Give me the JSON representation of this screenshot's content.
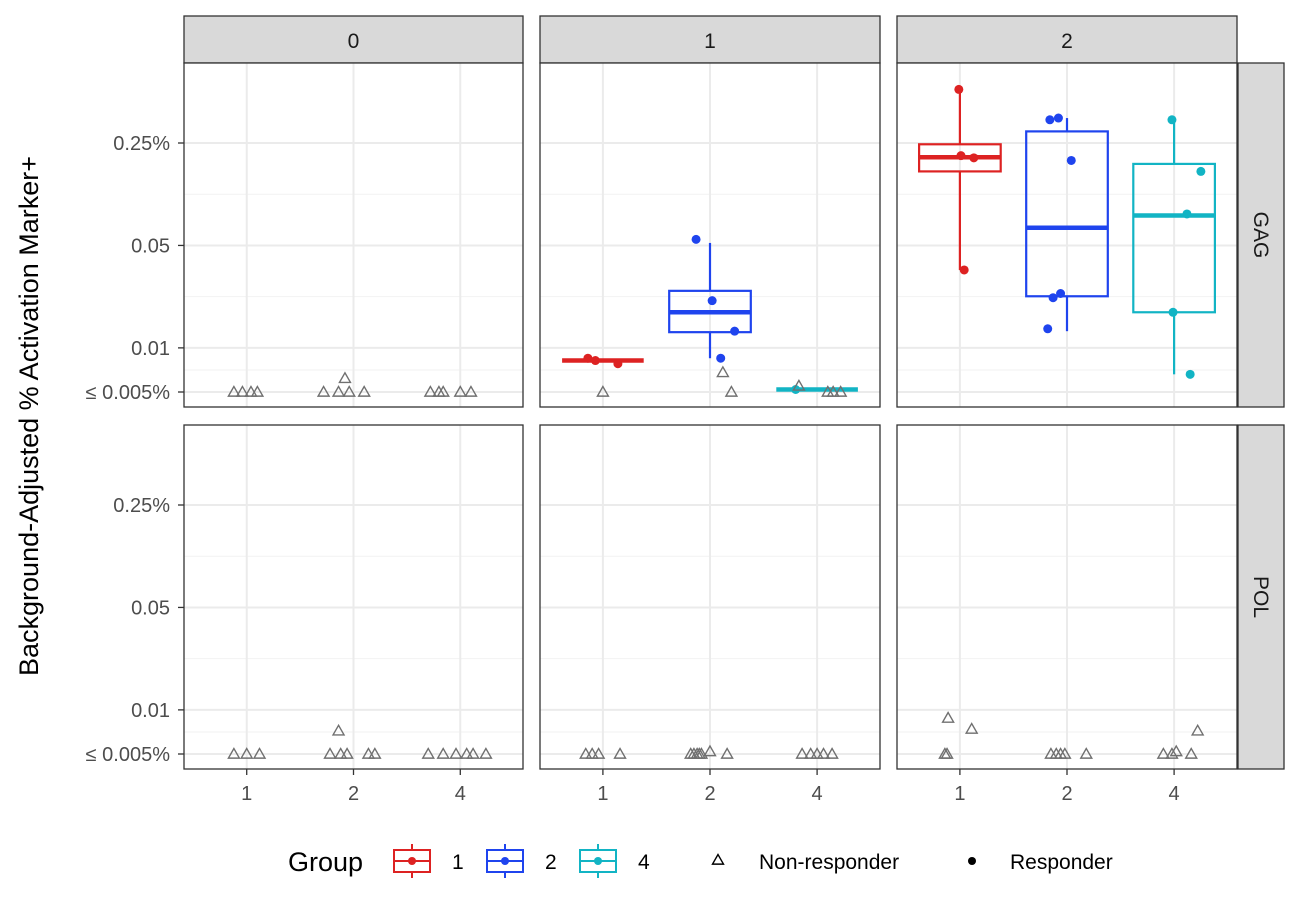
{
  "chart_data": {
    "type": "boxplot",
    "y_axis_label": "Background-Adjusted % Activation Marker+",
    "y_ticks": [
      {
        "label": "≤ 0.005%",
        "value": 0.005
      },
      {
        "label": "0.01",
        "value": 0.01
      },
      {
        "label": "0.05",
        "value": 0.05
      },
      {
        "label": "0.25%",
        "value": 0.25
      }
    ],
    "y_scale": "log",
    "y_range": [
      0.0045,
      0.95
    ],
    "x_categories": [
      "1",
      "2",
      "4"
    ],
    "col_facets": [
      "0",
      "1",
      "2"
    ],
    "row_facets": [
      "GAG",
      "POL"
    ],
    "legend": {
      "group_title": "Group",
      "groups": [
        {
          "name": "1",
          "color": "#dd2222"
        },
        {
          "name": "2",
          "color": "#1f44ee"
        },
        {
          "name": "4",
          "color": "#12b4c4"
        }
      ],
      "shapes": [
        {
          "name": "Non-responder",
          "shape": "triangle-open"
        },
        {
          "name": "Responder",
          "shape": "circle-filled"
        }
      ]
    },
    "panels": [
      {
        "col": "0",
        "row": "GAG",
        "boxes": [],
        "points": [
          {
            "group": "1",
            "x_offset": -0.12,
            "y": 0.005,
            "responder": false
          },
          {
            "group": "1",
            "x_offset": -0.04,
            "y": 0.005,
            "responder": false
          },
          {
            "group": "1",
            "x_offset": 0.04,
            "y": 0.005,
            "responder": false
          },
          {
            "group": "1",
            "x_offset": 0.1,
            "y": 0.005,
            "responder": false
          },
          {
            "group": "2",
            "x_offset": -0.28,
            "y": 0.005,
            "responder": false
          },
          {
            "group": "2",
            "x_offset": -0.14,
            "y": 0.005,
            "responder": false
          },
          {
            "group": "2",
            "x_offset": -0.08,
            "y": 0.0062,
            "responder": false
          },
          {
            "group": "2",
            "x_offset": -0.04,
            "y": 0.005,
            "responder": false
          },
          {
            "group": "2",
            "x_offset": 0.1,
            "y": 0.005,
            "responder": false
          },
          {
            "group": "4",
            "x_offset": -0.28,
            "y": 0.005,
            "responder": false
          },
          {
            "group": "4",
            "x_offset": -0.2,
            "y": 0.005,
            "responder": false
          },
          {
            "group": "4",
            "x_offset": -0.16,
            "y": 0.005,
            "responder": false
          },
          {
            "group": "4",
            "x_offset": 0.0,
            "y": 0.005,
            "responder": false
          },
          {
            "group": "4",
            "x_offset": 0.1,
            "y": 0.005,
            "responder": false
          }
        ]
      },
      {
        "col": "1",
        "row": "GAG",
        "boxes": [
          {
            "group": "1",
            "min": 0.0082,
            "q1": 0.0082,
            "median": 0.0082,
            "q3": 0.0082,
            "max": 0.0082
          },
          {
            "group": "2",
            "min": 0.0085,
            "q1": 0.0128,
            "median": 0.0175,
            "q3": 0.0245,
            "max": 0.052
          },
          {
            "group": "4",
            "min": 0.0052,
            "q1": 0.0052,
            "median": 0.0052,
            "q3": 0.0052,
            "max": 0.0052
          }
        ],
        "points": [
          {
            "group": "1",
            "x_offset": -0.14,
            "y": 0.0085,
            "responder": true
          },
          {
            "group": "1",
            "x_offset": -0.07,
            "y": 0.0082,
            "responder": true
          },
          {
            "group": "1",
            "x_offset": 0.14,
            "y": 0.0078,
            "responder": true
          },
          {
            "group": "1",
            "x_offset": 0.0,
            "y": 0.005,
            "responder": false
          },
          {
            "group": "2",
            "x_offset": -0.13,
            "y": 0.055,
            "responder": true
          },
          {
            "group": "2",
            "x_offset": 0.02,
            "y": 0.021,
            "responder": true
          },
          {
            "group": "2",
            "x_offset": 0.23,
            "y": 0.013,
            "responder": true
          },
          {
            "group": "2",
            "x_offset": 0.1,
            "y": 0.0085,
            "responder": true
          },
          {
            "group": "2",
            "x_offset": 0.12,
            "y": 0.0068,
            "responder": false
          },
          {
            "group": "2",
            "x_offset": 0.2,
            "y": 0.005,
            "responder": false
          },
          {
            "group": "4",
            "x_offset": -0.2,
            "y": 0.0052,
            "responder": true
          },
          {
            "group": "4",
            "x_offset": -0.17,
            "y": 0.0055,
            "responder": false
          },
          {
            "group": "4",
            "x_offset": 0.1,
            "y": 0.005,
            "responder": false
          },
          {
            "group": "4",
            "x_offset": 0.15,
            "y": 0.005,
            "responder": false
          },
          {
            "group": "4",
            "x_offset": 0.22,
            "y": 0.005,
            "responder": false
          }
        ]
      },
      {
        "col": "2",
        "row": "GAG",
        "boxes": [
          {
            "group": "1",
            "min": 0.034,
            "q1": 0.16,
            "median": 0.2,
            "q3": 0.245,
            "max": 0.58
          },
          {
            "group": "2",
            "min": 0.013,
            "q1": 0.0225,
            "median": 0.066,
            "q3": 0.3,
            "max": 0.37
          },
          {
            "group": "4",
            "min": 0.0066,
            "q1": 0.0175,
            "median": 0.08,
            "q3": 0.18,
            "max": 0.36
          }
        ],
        "points": [
          {
            "group": "1",
            "x_offset": -0.01,
            "y": 0.58,
            "responder": true
          },
          {
            "group": "1",
            "x_offset": 0.01,
            "y": 0.205,
            "responder": true
          },
          {
            "group": "1",
            "x_offset": 0.13,
            "y": 0.198,
            "responder": true
          },
          {
            "group": "1",
            "x_offset": 0.04,
            "y": 0.034,
            "responder": true
          },
          {
            "group": "2",
            "x_offset": -0.16,
            "y": 0.36,
            "responder": true
          },
          {
            "group": "2",
            "x_offset": -0.08,
            "y": 0.37,
            "responder": true
          },
          {
            "group": "2",
            "x_offset": 0.04,
            "y": 0.19,
            "responder": true
          },
          {
            "group": "2",
            "x_offset": -0.13,
            "y": 0.022,
            "responder": true
          },
          {
            "group": "2",
            "x_offset": -0.06,
            "y": 0.0235,
            "responder": true
          },
          {
            "group": "2",
            "x_offset": -0.18,
            "y": 0.0135,
            "responder": true
          },
          {
            "group": "4",
            "x_offset": -0.02,
            "y": 0.36,
            "responder": true
          },
          {
            "group": "4",
            "x_offset": 0.25,
            "y": 0.16,
            "responder": true
          },
          {
            "group": "4",
            "x_offset": 0.12,
            "y": 0.082,
            "responder": true
          },
          {
            "group": "4",
            "x_offset": -0.01,
            "y": 0.0175,
            "responder": true
          },
          {
            "group": "4",
            "x_offset": 0.15,
            "y": 0.0066,
            "responder": true
          }
        ]
      },
      {
        "col": "0",
        "row": "POL",
        "boxes": [],
        "points": [
          {
            "group": "1",
            "x_offset": -0.12,
            "y": 0.005,
            "responder": false
          },
          {
            "group": "1",
            "x_offset": 0.0,
            "y": 0.005,
            "responder": false
          },
          {
            "group": "1",
            "x_offset": 0.12,
            "y": 0.005,
            "responder": false
          },
          {
            "group": "2",
            "x_offset": -0.22,
            "y": 0.005,
            "responder": false
          },
          {
            "group": "2",
            "x_offset": -0.14,
            "y": 0.0072,
            "responder": false
          },
          {
            "group": "2",
            "x_offset": -0.12,
            "y": 0.005,
            "responder": false
          },
          {
            "group": "2",
            "x_offset": -0.06,
            "y": 0.005,
            "responder": false
          },
          {
            "group": "2",
            "x_offset": 0.14,
            "y": 0.005,
            "responder": false
          },
          {
            "group": "2",
            "x_offset": 0.2,
            "y": 0.005,
            "responder": false
          },
          {
            "group": "4",
            "x_offset": -0.3,
            "y": 0.005,
            "responder": false
          },
          {
            "group": "4",
            "x_offset": -0.16,
            "y": 0.005,
            "responder": false
          },
          {
            "group": "4",
            "x_offset": -0.04,
            "y": 0.005,
            "responder": false
          },
          {
            "group": "4",
            "x_offset": 0.06,
            "y": 0.005,
            "responder": false
          },
          {
            "group": "4",
            "x_offset": 0.12,
            "y": 0.005,
            "responder": false
          },
          {
            "group": "4",
            "x_offset": 0.24,
            "y": 0.005,
            "responder": false
          }
        ]
      },
      {
        "col": "1",
        "row": "POL",
        "boxes": [],
        "points": [
          {
            "group": "1",
            "x_offset": -0.16,
            "y": 0.005,
            "responder": false
          },
          {
            "group": "1",
            "x_offset": -0.1,
            "y": 0.005,
            "responder": false
          },
          {
            "group": "1",
            "x_offset": -0.04,
            "y": 0.005,
            "responder": false
          },
          {
            "group": "1",
            "x_offset": 0.16,
            "y": 0.005,
            "responder": false
          },
          {
            "group": "2",
            "x_offset": -0.18,
            "y": 0.005,
            "responder": false
          },
          {
            "group": "2",
            "x_offset": -0.15,
            "y": 0.005,
            "responder": false
          },
          {
            "group": "2",
            "x_offset": -0.12,
            "y": 0.005,
            "responder": false
          },
          {
            "group": "2",
            "x_offset": -0.1,
            "y": 0.005,
            "responder": false
          },
          {
            "group": "2",
            "x_offset": -0.08,
            "y": 0.005,
            "responder": false
          },
          {
            "group": "2",
            "x_offset": 0.0,
            "y": 0.0052,
            "responder": false
          },
          {
            "group": "2",
            "x_offset": 0.16,
            "y": 0.005,
            "responder": false
          },
          {
            "group": "4",
            "x_offset": -0.14,
            "y": 0.005,
            "responder": false
          },
          {
            "group": "4",
            "x_offset": -0.06,
            "y": 0.005,
            "responder": false
          },
          {
            "group": "4",
            "x_offset": 0.0,
            "y": 0.005,
            "responder": false
          },
          {
            "group": "4",
            "x_offset": 0.06,
            "y": 0.005,
            "responder": false
          },
          {
            "group": "4",
            "x_offset": 0.14,
            "y": 0.005,
            "responder": false
          }
        ]
      },
      {
        "col": "2",
        "row": "POL",
        "boxes": [],
        "points": [
          {
            "group": "1",
            "x_offset": -0.14,
            "y": 0.005,
            "responder": false
          },
          {
            "group": "1",
            "x_offset": -0.12,
            "y": 0.005,
            "responder": false
          },
          {
            "group": "1",
            "x_offset": -0.11,
            "y": 0.0088,
            "responder": false
          },
          {
            "group": "1",
            "x_offset": 0.11,
            "y": 0.0074,
            "responder": false
          },
          {
            "group": "2",
            "x_offset": -0.15,
            "y": 0.005,
            "responder": false
          },
          {
            "group": "2",
            "x_offset": -0.1,
            "y": 0.005,
            "responder": false
          },
          {
            "group": "2",
            "x_offset": -0.06,
            "y": 0.005,
            "responder": false
          },
          {
            "group": "2",
            "x_offset": -0.02,
            "y": 0.005,
            "responder": false
          },
          {
            "group": "2",
            "x_offset": 0.18,
            "y": 0.005,
            "responder": false
          },
          {
            "group": "4",
            "x_offset": -0.1,
            "y": 0.005,
            "responder": false
          },
          {
            "group": "4",
            "x_offset": -0.02,
            "y": 0.005,
            "responder": false
          },
          {
            "group": "4",
            "x_offset": 0.02,
            "y": 0.0052,
            "responder": false
          },
          {
            "group": "4",
            "x_offset": 0.16,
            "y": 0.005,
            "responder": false
          },
          {
            "group": "4",
            "x_offset": 0.22,
            "y": 0.0072,
            "responder": false
          }
        ]
      }
    ]
  }
}
